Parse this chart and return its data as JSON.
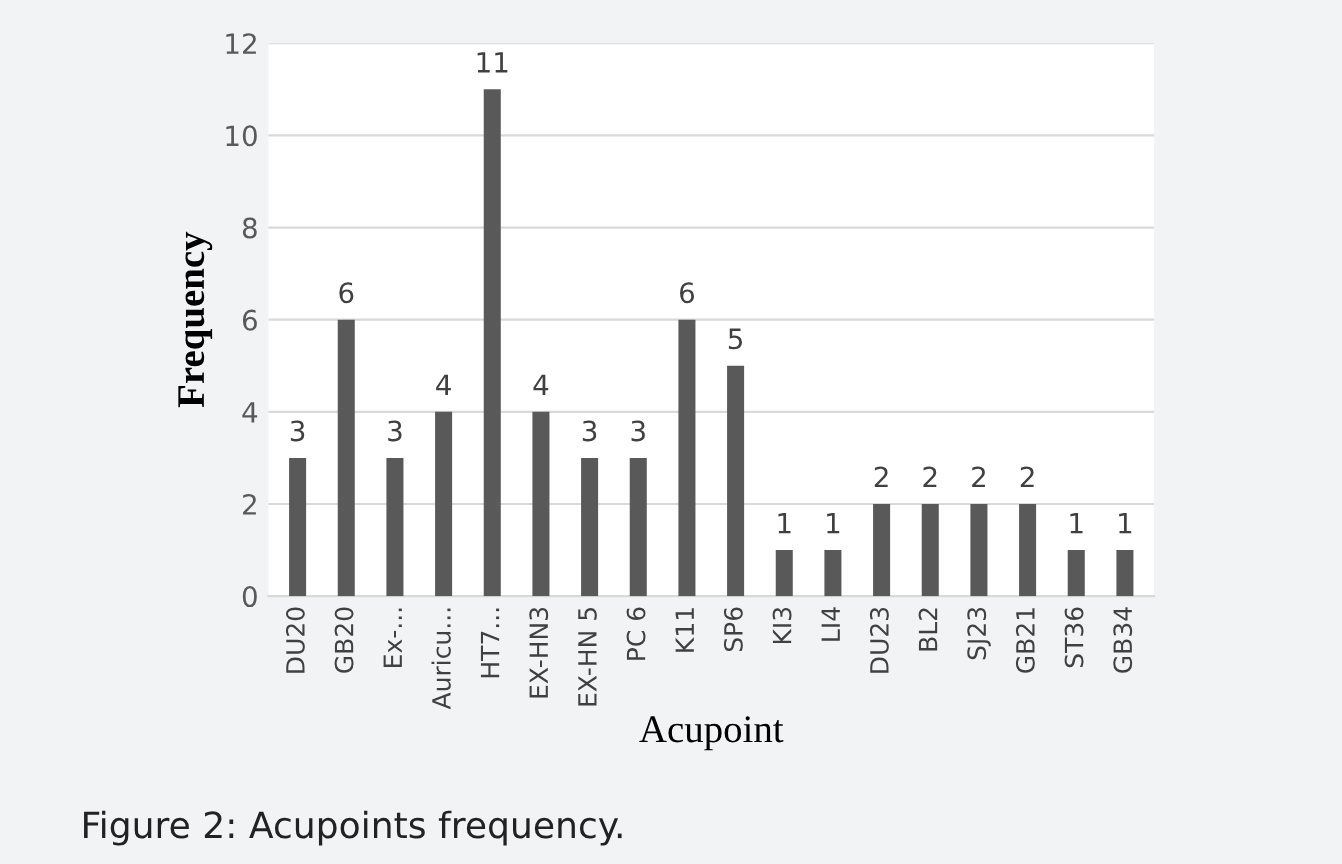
{
  "chart_data": {
    "type": "bar",
    "xlabel": "Acupoint",
    "ylabel": "Frequency",
    "categories": [
      "DU20",
      "GB20",
      "Ex-...",
      "Auricu...",
      "HT7...",
      "EX-HN3",
      "EX-HN 5",
      "PC 6",
      "K11",
      "SP6",
      "KI3",
      "LI4",
      "DU23",
      "BL2",
      "SJ23",
      "GB21",
      "ST36",
      "GB34"
    ],
    "values": [
      3,
      6,
      3,
      4,
      11,
      4,
      3,
      3,
      6,
      5,
      1,
      1,
      2,
      2,
      2,
      2,
      1,
      1
    ],
    "color": "#595959",
    "ylim": [
      0,
      12
    ],
    "yticks": [
      0,
      2,
      4,
      6,
      8,
      10,
      12
    ],
    "grid": "y",
    "data_labels": true,
    "legend": false,
    "annotations": [
      "Figure 2: Acupoints frequency."
    ]
  }
}
